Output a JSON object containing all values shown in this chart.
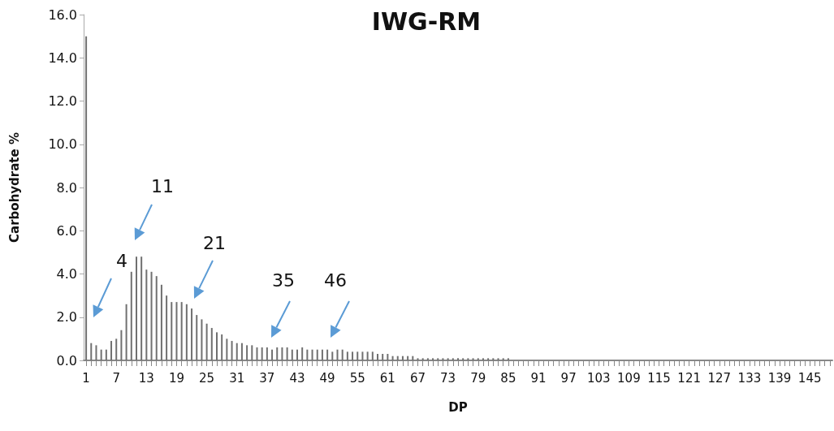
{
  "chart_data": {
    "type": "bar",
    "title": "IWG-RM",
    "xlabel": "DP",
    "ylabel": "Carbohydrate %",
    "x": [
      1,
      2,
      3,
      4,
      5,
      6,
      7,
      8,
      9,
      10,
      11,
      12,
      13,
      14,
      15,
      16,
      17,
      18,
      19,
      20,
      21,
      22,
      23,
      24,
      25,
      26,
      27,
      28,
      29,
      30,
      31,
      32,
      33,
      34,
      35,
      36,
      37,
      38,
      39,
      40,
      41,
      42,
      43,
      44,
      45,
      46,
      47,
      48,
      49,
      50,
      51,
      52,
      53,
      54,
      55,
      56,
      57,
      58,
      59,
      60,
      61,
      62,
      63,
      64,
      65,
      66,
      67,
      68,
      69,
      70,
      71,
      72,
      73,
      74,
      75,
      76,
      77,
      78,
      79,
      80,
      81,
      82,
      83,
      84,
      85,
      86,
      87,
      88,
      89,
      90,
      91,
      92,
      93,
      94,
      95,
      96,
      97,
      98,
      99,
      100,
      101,
      102,
      103,
      104,
      105,
      106,
      107,
      108,
      109,
      110,
      111,
      112,
      113,
      114,
      115,
      116,
      117,
      118,
      119,
      120,
      121,
      122,
      123,
      124,
      125,
      126,
      127,
      128,
      129,
      130,
      131,
      132,
      133,
      134,
      135,
      136,
      137,
      138,
      139,
      140,
      141,
      142,
      143,
      144,
      145,
      146,
      147,
      148,
      149
    ],
    "values": [
      15.0,
      0.8,
      0.7,
      0.5,
      0.5,
      0.9,
      1.0,
      1.4,
      2.6,
      4.1,
      4.8,
      4.8,
      4.2,
      4.1,
      3.9,
      3.5,
      3.0,
      2.7,
      2.7,
      2.7,
      2.6,
      2.4,
      2.1,
      1.9,
      1.7,
      1.5,
      1.3,
      1.2,
      1.0,
      0.9,
      0.8,
      0.8,
      0.7,
      0.7,
      0.6,
      0.6,
      0.6,
      0.5,
      0.6,
      0.6,
      0.6,
      0.5,
      0.5,
      0.6,
      0.5,
      0.5,
      0.5,
      0.5,
      0.5,
      0.4,
      0.5,
      0.5,
      0.4,
      0.4,
      0.4,
      0.4,
      0.4,
      0.4,
      0.3,
      0.3,
      0.3,
      0.2,
      0.2,
      0.2,
      0.2,
      0.2,
      0.1,
      0.1,
      0.1,
      0.1,
      0.1,
      0.1,
      0.1,
      0.1,
      0.1,
      0.1,
      0.1,
      0.1,
      0.1,
      0.1,
      0.1,
      0.1,
      0.1,
      0.1,
      0.1,
      0,
      0,
      0,
      0,
      0,
      0,
      0,
      0,
      0,
      0,
      0,
      0,
      0,
      0,
      0,
      0,
      0,
      0,
      0,
      0,
      0,
      0,
      0,
      0,
      0,
      0,
      0,
      0,
      0,
      0,
      0,
      0,
      0,
      0,
      0,
      0,
      0,
      0,
      0,
      0,
      0,
      0,
      0,
      0,
      0,
      0,
      0,
      0,
      0,
      0,
      0,
      0,
      0,
      0,
      0,
      0,
      0,
      0,
      0,
      0,
      0,
      0,
      0,
      0
    ],
    "color": "#707070",
    "xlim": [
      0.5,
      149.5
    ],
    "xticks": [
      1,
      7,
      13,
      19,
      25,
      31,
      37,
      43,
      49,
      55,
      61,
      67,
      73,
      79,
      85,
      91,
      97,
      103,
      109,
      115,
      121,
      127,
      133,
      139,
      145
    ],
    "ylim": [
      0,
      16
    ],
    "yticks": [
      {
        "value": 0,
        "label": "0.0"
      },
      {
        "value": 2,
        "label": "2.0"
      },
      {
        "value": 4,
        "label": "4.0"
      },
      {
        "value": 6,
        "label": "6.0"
      },
      {
        "value": 8,
        "label": "8.0"
      },
      {
        "value": 10,
        "label": "10.0"
      },
      {
        "value": 12,
        "label": "12.0"
      },
      {
        "value": 14,
        "label": "14.0"
      },
      {
        "value": 16,
        "label": "16.0"
      }
    ],
    "grid": false,
    "annotations": [
      "4",
      "11",
      "21",
      "35",
      "46"
    ]
  }
}
